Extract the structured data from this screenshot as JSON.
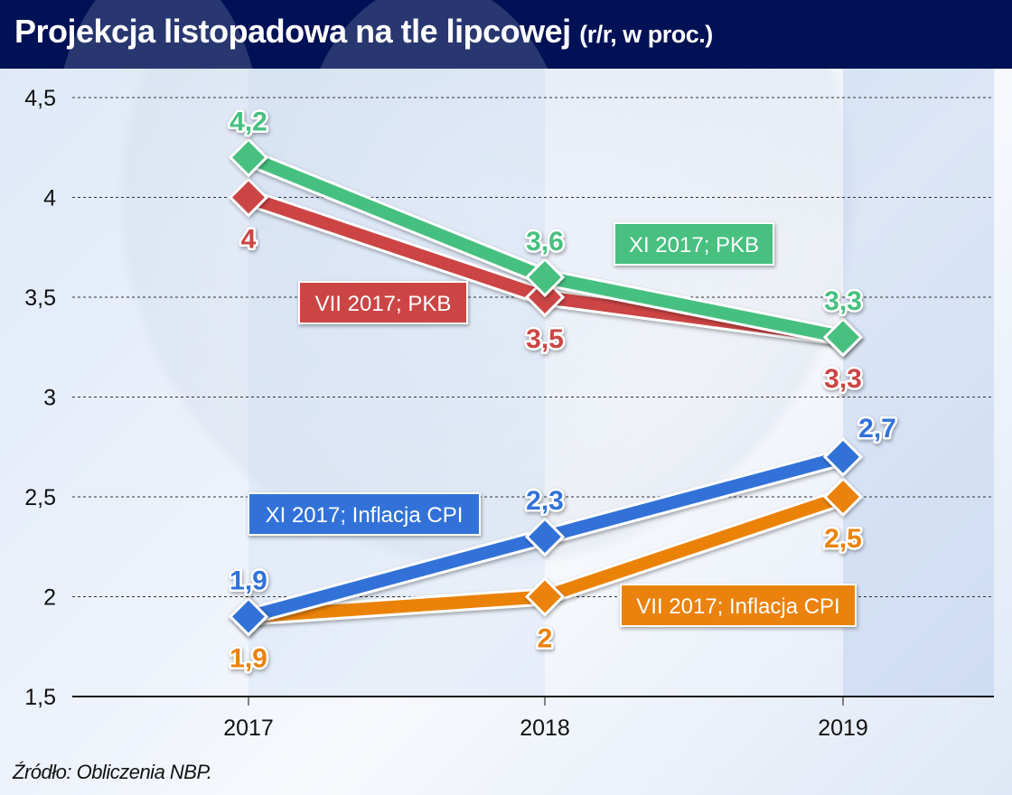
{
  "header": {
    "title": "Projekcja listopadowa na tle lipcowej",
    "subtitle": "(r/r, w proc.)"
  },
  "source": "Źródło: Obliczenia NBP.",
  "chart_data": {
    "type": "line",
    "title": "Projekcja listopadowa na tle lipcowej (r/r, w proc.)",
    "xlabel": "",
    "ylabel": "",
    "categories": [
      "2017",
      "2018",
      "2019"
    ],
    "ylim": [
      1.5,
      4.5
    ],
    "yticks": [
      1.5,
      2,
      2.5,
      3,
      3.5,
      4,
      4.5
    ],
    "ytick_labels": [
      "1,5",
      "2",
      "2,5",
      "3",
      "3,5",
      "4",
      "4,5"
    ],
    "grid": true,
    "legend": "inline labels",
    "series": [
      {
        "name": "VII 2017; PKB",
        "color": "#cc4444",
        "values": [
          4.0,
          3.5,
          3.3
        ],
        "labels": [
          "4",
          "3,5",
          "3,3"
        ],
        "label_pos": [
          "below",
          "below",
          "below"
        ]
      },
      {
        "name": "XI 2017; PKB",
        "color": "#46c080",
        "values": [
          4.2,
          3.6,
          3.3
        ],
        "labels": [
          "4,2",
          "3,6",
          "3,3"
        ],
        "label_pos": [
          "above",
          "above",
          "above"
        ]
      },
      {
        "name": "VII 2017; Inflacja CPI",
        "color": "#ea8208",
        "values": [
          1.9,
          2.0,
          2.5
        ],
        "labels": [
          "1,9",
          "2",
          "2,5"
        ],
        "label_pos": [
          "below",
          "below",
          "below"
        ]
      },
      {
        "name": "XI 2017; Inflacja CPI",
        "color": "#3272d8",
        "values": [
          1.9,
          2.3,
          2.7
        ],
        "labels": [
          "1,9",
          "2,3",
          "2,7"
        ],
        "label_pos": [
          "above",
          "above",
          "above-right"
        ]
      }
    ]
  }
}
